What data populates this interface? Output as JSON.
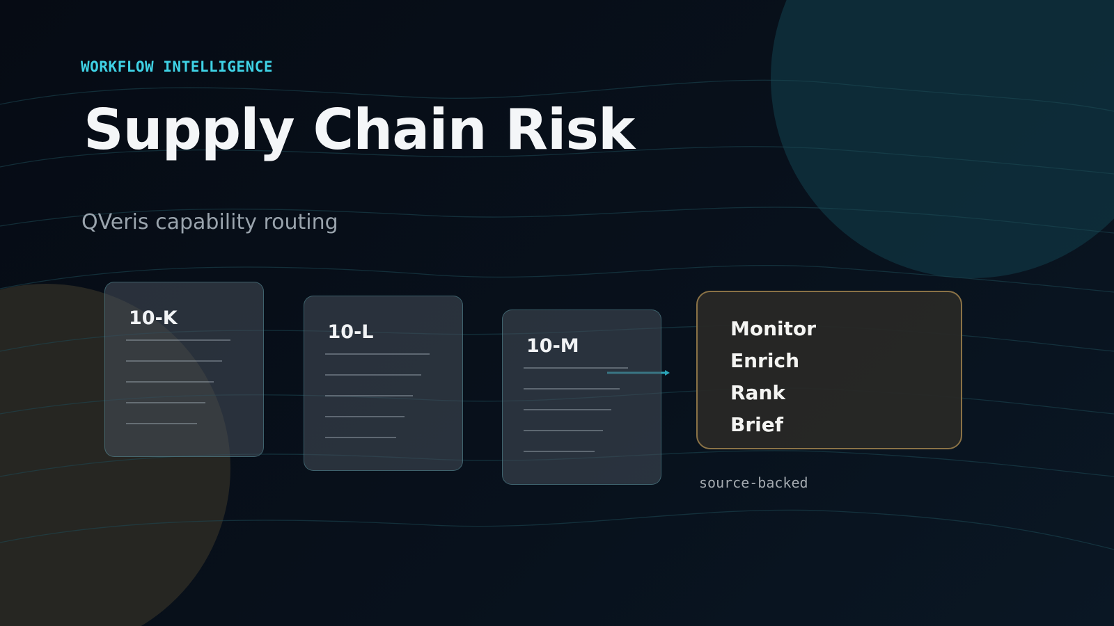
{
  "eyebrow": "WORKFLOW INTELLIGENCE",
  "title": "Supply Chain Risk",
  "subtitle": "QVeris capability routing",
  "documents": [
    "10-K",
    "10-L",
    "10-M"
  ],
  "steps": [
    "Monitor",
    "Enrich",
    "Rank",
    "Brief"
  ],
  "note": "source-backed"
}
